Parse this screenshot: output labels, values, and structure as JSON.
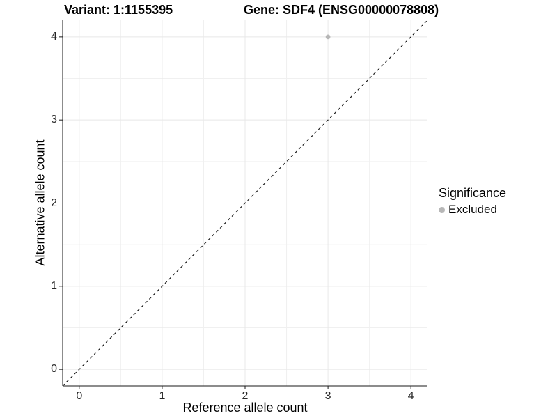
{
  "title": {
    "variant": "Variant: 1:1155395",
    "gene": "Gene: SDF4 (ENSG00000078808)"
  },
  "chart_data": {
    "type": "scatter",
    "title": "Variant: 1:1155395  Gene: SDF4 (ENSG00000078808)",
    "xlabel": "Reference allele count",
    "ylabel": "Alternative allele count",
    "xlim": [
      -0.2,
      4.2
    ],
    "ylim": [
      -0.2,
      4.2
    ],
    "xticks": [
      0,
      1,
      2,
      3,
      4
    ],
    "yticks": [
      0,
      1,
      2,
      3,
      4
    ],
    "minor_xticks": [
      0.5,
      1.5,
      2.5,
      3.5
    ],
    "minor_yticks": [
      0.5,
      1.5,
      2.5,
      3.5
    ],
    "grid": true,
    "points": [
      {
        "x": 3,
        "y": 4,
        "series": "Excluded"
      }
    ],
    "reference_line": {
      "style": "dashed",
      "from": [
        -0.2,
        -0.2
      ],
      "to": [
        4.2,
        4.2
      ],
      "slope": 1,
      "intercept": 0
    },
    "legend": {
      "title": "Significance",
      "position": "right",
      "entries": [
        {
          "label": "Excluded",
          "color": "#b7b7b7",
          "marker": "circle"
        }
      ]
    }
  },
  "colors": {
    "background": "#ffffff",
    "grid_major": "#e8e8e8",
    "grid_minor": "#f0f0f0",
    "axis_line": "#1a1a1a",
    "tick_mark": "#1a1a1a",
    "tick_text": "#262626",
    "dashed_line": "#1a1a1a",
    "point": "#b7b7b7"
  }
}
